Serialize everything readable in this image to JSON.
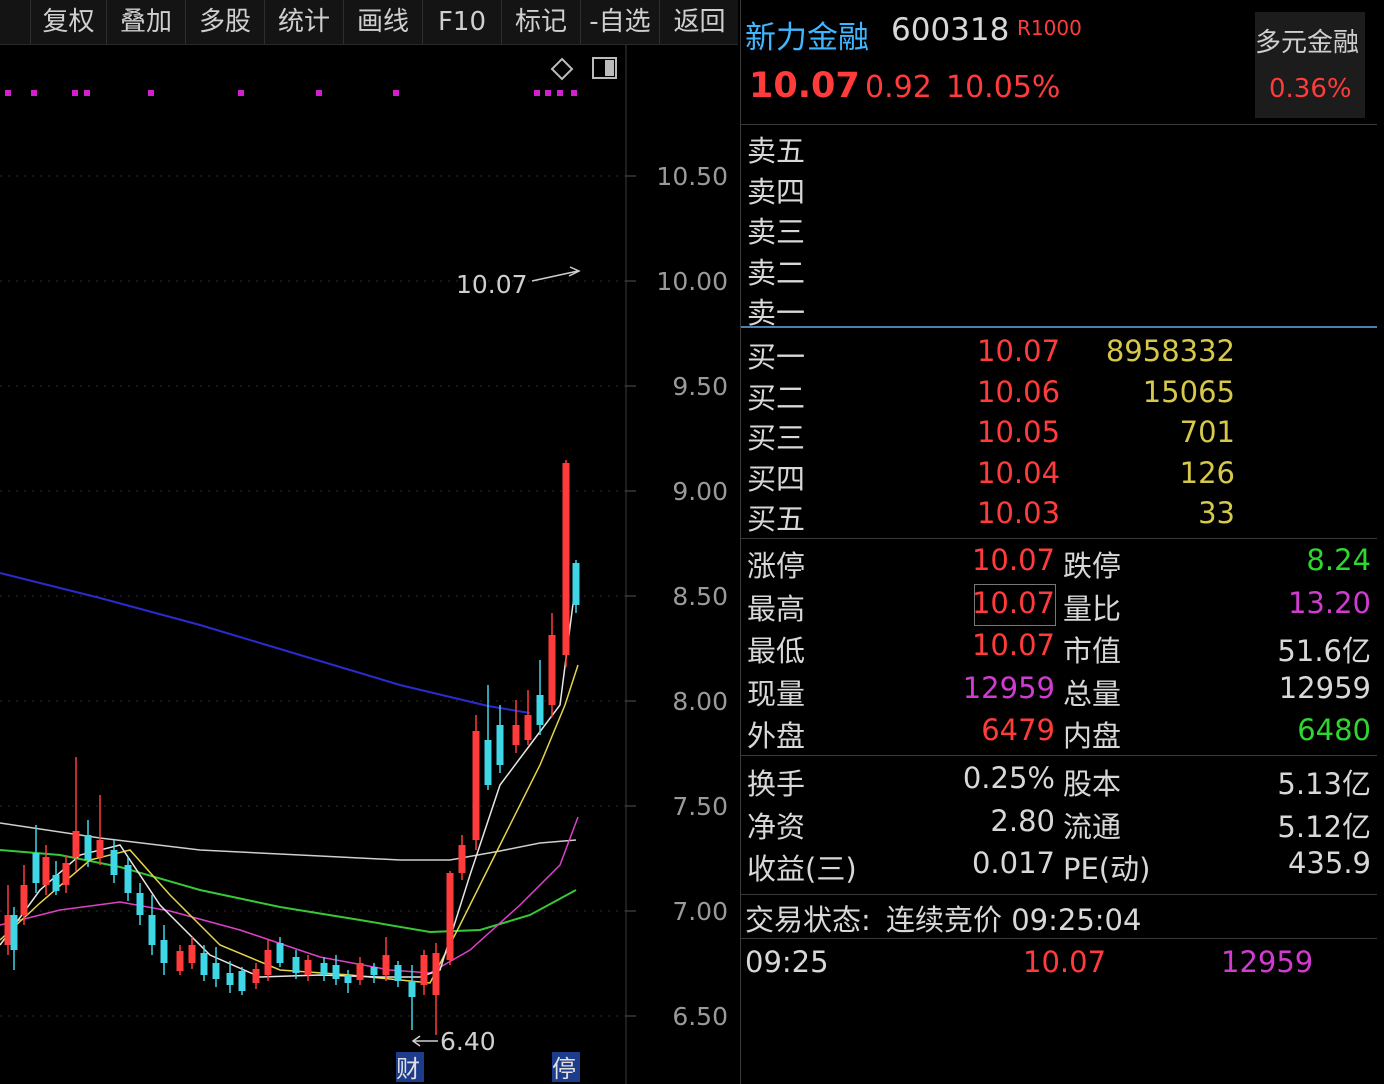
{
  "toolbar": {
    "items": [
      "复权",
      "叠加",
      "多股",
      "统计",
      "画线",
      "F10",
      "标记",
      "-自选",
      "返回"
    ]
  },
  "chart": {
    "y_axis_labels": [
      "10.50",
      "10.00",
      "9.50",
      "9.00",
      "8.50",
      "8.00",
      "7.50",
      "7.00",
      "6.50"
    ],
    "high_annotation": "10.07",
    "low_annotation": "6.40",
    "markers": [
      "财",
      "停"
    ],
    "colors": {
      "up": "#ff3b3b",
      "down": "#3fd6e6",
      "ma_long": "#2b2bd0",
      "ma_white": "#e6e6e6",
      "ma_yellow": "#e6d44a",
      "ma_magenta": "#e040c8",
      "ma_green": "#37c837",
      "dots": "#d020d0"
    }
  },
  "chart_data": {
    "type": "candlestick",
    "ylim": [
      6.4,
      10.5
    ],
    "yticks": [
      10.5,
      10.0,
      9.5,
      9.0,
      8.5,
      8.0,
      7.5,
      7.0,
      6.5
    ],
    "annotations": [
      {
        "text": "10.07",
        "value": 10.07
      },
      {
        "text": "6.40",
        "value": 6.4
      }
    ]
  },
  "quote": {
    "name": "新力金融",
    "code": "600318",
    "badge": "R1000",
    "price": "10.07",
    "change": "0.92",
    "change_pct": "10.05%",
    "sector_name": "多元金融",
    "sector_pct": "0.36%",
    "sell_labels": [
      "卖五",
      "卖四",
      "卖三",
      "卖二",
      "卖一"
    ],
    "buy": [
      {
        "label": "买一",
        "price": "10.07",
        "vol": "8958332"
      },
      {
        "label": "买二",
        "price": "10.06",
        "vol": "15065"
      },
      {
        "label": "买三",
        "price": "10.05",
        "vol": "701"
      },
      {
        "label": "买四",
        "price": "10.04",
        "vol": "126"
      },
      {
        "label": "买五",
        "price": "10.03",
        "vol": "33"
      }
    ],
    "stats1": [
      {
        "l1": "涨停",
        "v1": "10.07",
        "l2": "跌停",
        "v2": "8.24"
      },
      {
        "l1": "最高",
        "v1": "10.07",
        "l2": "量比",
        "v2": "13.20"
      },
      {
        "l1": "最低",
        "v1": "10.07",
        "l2": "市值",
        "v2": "51.6亿"
      },
      {
        "l1": "现量",
        "v1": "12959",
        "l2": "总量",
        "v2": "12959"
      },
      {
        "l1": "外盘",
        "v1": "6479",
        "l2": "内盘",
        "v2": "6480"
      }
    ],
    "stats2": [
      {
        "l1": "换手",
        "v1": "0.25%",
        "l2": "股本",
        "v2": "5.13亿"
      },
      {
        "l1": "净资",
        "v1": "2.80",
        "l2": "流通",
        "v2": "5.12亿"
      },
      {
        "l1": "收益(三)",
        "v1": "0.017",
        "l2": "PE(动)",
        "v2": "435.9"
      }
    ],
    "status_label": "交易状态:",
    "status_value": "连续竞价 09:25:04",
    "tick": {
      "time": "09:25",
      "price": "10.07",
      "vol": "12959"
    }
  }
}
